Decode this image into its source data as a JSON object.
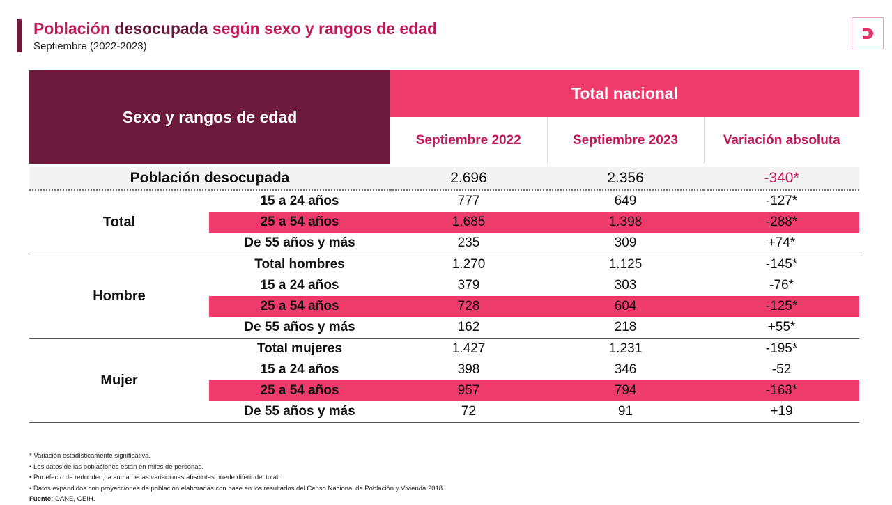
{
  "header": {
    "title_part1": "Población",
    "title_part2": "desocupada",
    "title_part3": "según sexo y rangos de edad",
    "subtitle": "Septiembre (2022-2023)",
    "logo_text": "D"
  },
  "colors": {
    "dark": "#6b1a3c",
    "accent": "#ef3a6c",
    "title": "#c2185b"
  },
  "table": {
    "row_header": "Sexo y rangos de edad",
    "group_header": "Total nacional",
    "columns": [
      "Septiembre 2022",
      "Septiembre 2023",
      "Variación absoluta"
    ],
    "total_row": {
      "label": "Población desocupada",
      "values": [
        "2.696",
        "2.356",
        "-340*"
      ]
    },
    "groups": [
      {
        "name": "Total",
        "rows": [
          {
            "label": "15 a 24 años",
            "values": [
              "777",
              "649",
              "-127*"
            ],
            "highlight": false
          },
          {
            "label": "25 a 54 años",
            "values": [
              "1.685",
              "1.398",
              "-288*"
            ],
            "highlight": true
          },
          {
            "label": "De 55 años y más",
            "values": [
              "235",
              "309",
              "+74*"
            ],
            "highlight": false
          }
        ]
      },
      {
        "name": "Hombre",
        "rows": [
          {
            "label": "Total hombres",
            "values": [
              "1.270",
              "1.125",
              "-145*"
            ],
            "highlight": false
          },
          {
            "label": "15 a 24 años",
            "values": [
              "379",
              "303",
              "-76*"
            ],
            "highlight": false
          },
          {
            "label": "25 a 54 años",
            "values": [
              "728",
              "604",
              "-125*"
            ],
            "highlight": true
          },
          {
            "label": "De 55 años y más",
            "values": [
              "162",
              "218",
              "+55*"
            ],
            "highlight": false
          }
        ]
      },
      {
        "name": "Mujer",
        "rows": [
          {
            "label": "Total mujeres",
            "values": [
              "1.427",
              "1.231",
              "-195*"
            ],
            "highlight": false
          },
          {
            "label": "15 a 24 años",
            "values": [
              "398",
              "346",
              "-52"
            ],
            "highlight": false
          },
          {
            "label": "25 a 54 años",
            "values": [
              "957",
              "794",
              "-163*"
            ],
            "highlight": true
          },
          {
            "label": "De 55 años y más",
            "values": [
              "72",
              "91",
              "+19"
            ],
            "highlight": false
          }
        ]
      }
    ]
  },
  "notes": [
    "* Variación estadísticamente significativa.",
    "• Los datos de las poblaciones están en miles de personas.",
    "• Por efecto de redondeo, la suma de las variaciones absolutas puede diferir del total.",
    "• Datos expandidos con proyecciones de población elaboradas con base en los resultados del Censo Nacional de Población y Vivienda 2018."
  ],
  "source": {
    "label": "Fuente:",
    "text": "DANE, GEIH."
  }
}
